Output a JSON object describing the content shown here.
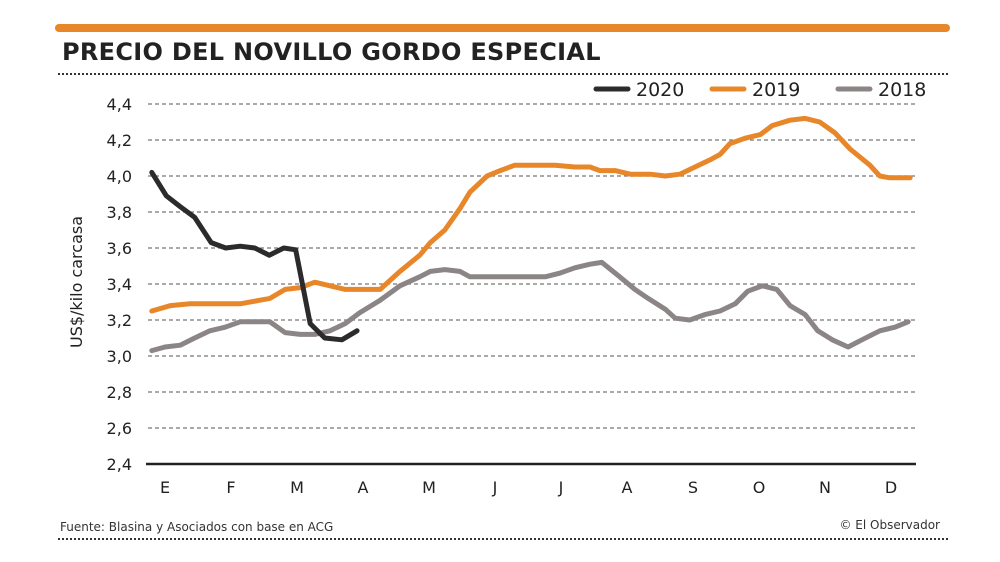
{
  "title": "PRECIO DEL NOVILLO GORDO ESPECIAL",
  "source": "Fuente: Blasina y Asociados con base en ACG",
  "credit": "© El Observador",
  "chart_data": {
    "type": "line",
    "title": "PRECIO DEL NOVILLO GORDO ESPECIAL",
    "xlabel": "",
    "ylabel": "US$/kilo carcasa",
    "ylim": [
      2.4,
      4.4
    ],
    "yticks": [
      2.4,
      2.6,
      2.8,
      3.0,
      3.2,
      3.4,
      3.6,
      3.8,
      4.0,
      4.2,
      4.4
    ],
    "ytick_labels": [
      "2,4",
      "2,6",
      "2,8",
      "3,0",
      "3,2",
      "3,4",
      "3,6",
      "3,8",
      "4,0",
      "4,2",
      "4,4"
    ],
    "categories": [
      "E",
      "F",
      "M",
      "A",
      "M",
      "J",
      "J",
      "A",
      "S",
      "O",
      "N",
      "D"
    ],
    "grid": true,
    "legend_position": "top-right",
    "series": [
      {
        "name": "2020",
        "color": "#2b2b2b",
        "points": [
          [
            -0.2,
            4.02
          ],
          [
            0.02,
            3.89
          ],
          [
            0.23,
            3.83
          ],
          [
            0.45,
            3.77
          ],
          [
            0.7,
            3.63
          ],
          [
            0.92,
            3.6
          ],
          [
            1.14,
            3.61
          ],
          [
            1.36,
            3.6
          ],
          [
            1.58,
            3.56
          ],
          [
            1.8,
            3.6
          ],
          [
            1.98,
            3.59
          ],
          [
            2.2,
            3.18
          ],
          [
            2.42,
            3.1
          ],
          [
            2.68,
            3.09
          ],
          [
            2.91,
            3.14
          ]
        ]
      },
      {
        "name": "2019",
        "color": "#e8872a",
        "points": [
          [
            -0.2,
            3.25
          ],
          [
            0.08,
            3.28
          ],
          [
            0.38,
            3.29
          ],
          [
            1.14,
            3.29
          ],
          [
            1.44,
            3.31
          ],
          [
            1.59,
            3.32
          ],
          [
            1.82,
            3.37
          ],
          [
            2.05,
            3.38
          ],
          [
            2.27,
            3.41
          ],
          [
            2.5,
            3.39
          ],
          [
            2.73,
            3.37
          ],
          [
            3.26,
            3.37
          ],
          [
            3.56,
            3.47
          ],
          [
            3.86,
            3.56
          ],
          [
            4.02,
            3.63
          ],
          [
            4.24,
            3.7
          ],
          [
            4.47,
            3.82
          ],
          [
            4.62,
            3.91
          ],
          [
            4.88,
            4.0
          ],
          [
            5.08,
            4.03
          ],
          [
            5.3,
            4.06
          ],
          [
            5.91,
            4.06
          ],
          [
            6.21,
            4.05
          ],
          [
            6.44,
            4.05
          ],
          [
            6.59,
            4.03
          ],
          [
            6.82,
            4.03
          ],
          [
            7.05,
            4.01
          ],
          [
            7.35,
            4.01
          ],
          [
            7.58,
            4.0
          ],
          [
            7.8,
            4.01
          ],
          [
            8.03,
            4.05
          ],
          [
            8.26,
            4.09
          ],
          [
            8.41,
            4.12
          ],
          [
            8.56,
            4.18
          ],
          [
            8.79,
            4.21
          ],
          [
            9.02,
            4.23
          ],
          [
            9.2,
            4.28
          ],
          [
            9.47,
            4.31
          ],
          [
            9.7,
            4.32
          ],
          [
            9.92,
            4.3
          ],
          [
            10.15,
            4.24
          ],
          [
            10.38,
            4.15
          ],
          [
            10.68,
            4.06
          ],
          [
            10.83,
            4.0
          ],
          [
            10.98,
            3.99
          ],
          [
            11.29,
            3.99
          ]
        ]
      },
      {
        "name": "2018",
        "color": "#8c8585",
        "points": [
          [
            -0.2,
            3.03
          ],
          [
            0,
            3.05
          ],
          [
            0.23,
            3.06
          ],
          [
            0.45,
            3.1
          ],
          [
            0.68,
            3.14
          ],
          [
            0.91,
            3.16
          ],
          [
            1.14,
            3.19
          ],
          [
            1.59,
            3.19
          ],
          [
            1.82,
            3.13
          ],
          [
            2.05,
            3.12
          ],
          [
            2.27,
            3.12
          ],
          [
            2.5,
            3.14
          ],
          [
            2.73,
            3.18
          ],
          [
            2.95,
            3.24
          ],
          [
            3.26,
            3.31
          ],
          [
            3.56,
            3.39
          ],
          [
            3.86,
            3.44
          ],
          [
            4.02,
            3.47
          ],
          [
            4.24,
            3.48
          ],
          [
            4.47,
            3.47
          ],
          [
            4.62,
            3.44
          ],
          [
            4.92,
            3.44
          ],
          [
            5.76,
            3.44
          ],
          [
            5.98,
            3.46
          ],
          [
            6.21,
            3.49
          ],
          [
            6.44,
            3.51
          ],
          [
            6.62,
            3.52
          ],
          [
            6.89,
            3.44
          ],
          [
            7.12,
            3.37
          ],
          [
            7.32,
            3.32
          ],
          [
            7.58,
            3.26
          ],
          [
            7.73,
            3.21
          ],
          [
            7.95,
            3.2
          ],
          [
            8.18,
            3.23
          ],
          [
            8.41,
            3.25
          ],
          [
            8.64,
            3.29
          ],
          [
            8.83,
            3.36
          ],
          [
            9.05,
            3.39
          ],
          [
            9.27,
            3.37
          ],
          [
            9.47,
            3.28
          ],
          [
            9.7,
            3.23
          ],
          [
            9.89,
            3.14
          ],
          [
            10.11,
            3.09
          ],
          [
            10.35,
            3.05
          ],
          [
            10.56,
            3.09
          ],
          [
            10.83,
            3.14
          ],
          [
            11.06,
            3.16
          ],
          [
            11.26,
            3.19
          ]
        ]
      }
    ]
  }
}
